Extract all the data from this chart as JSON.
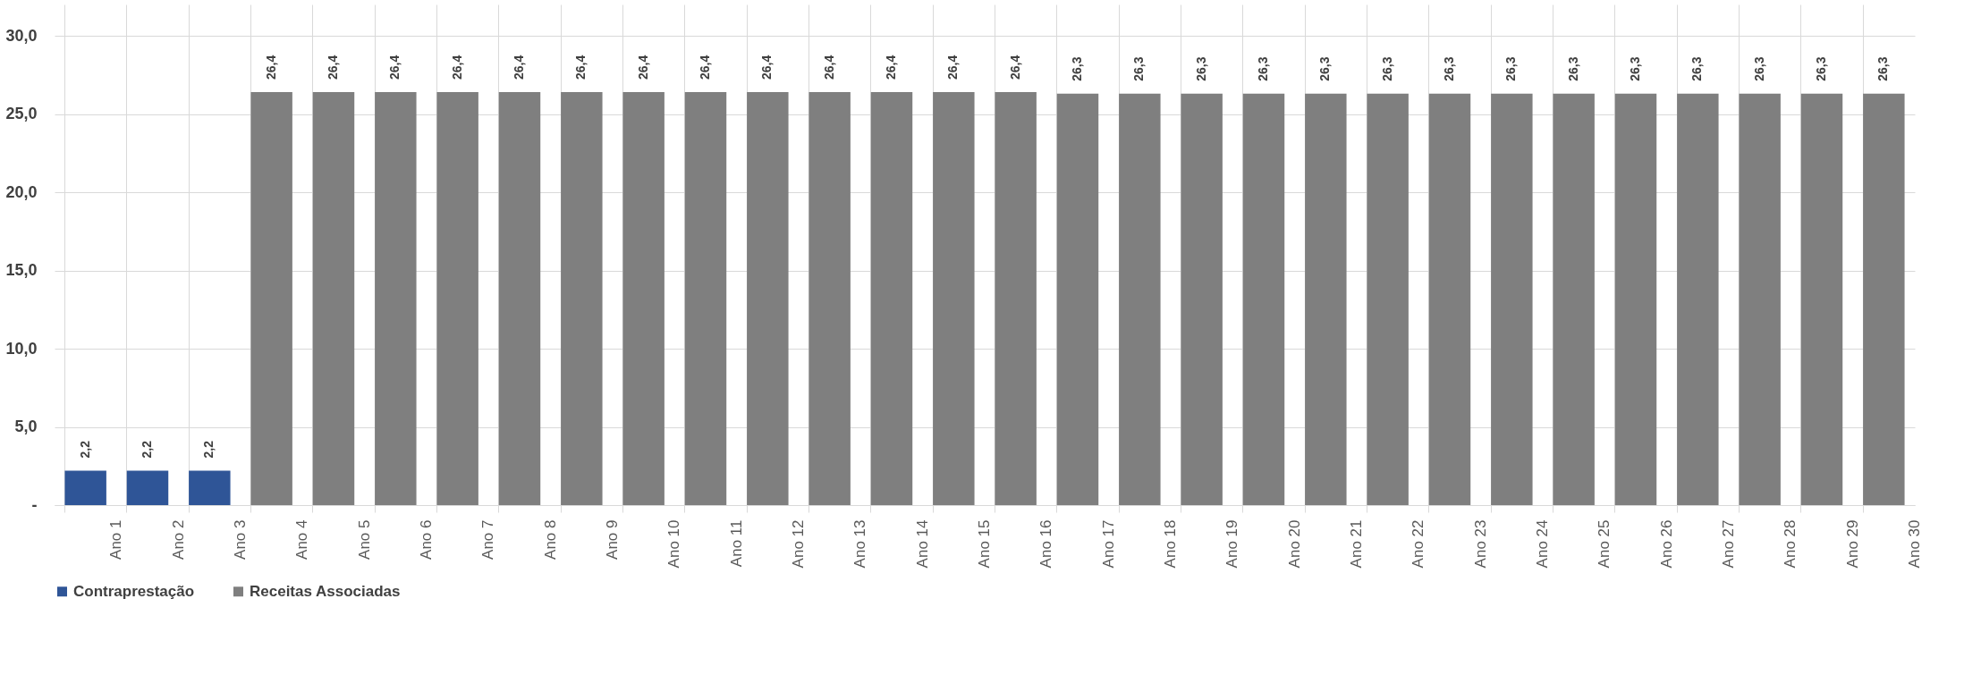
{
  "chart_data": {
    "type": "bar",
    "categories": [
      "Ano 1",
      "Ano 2",
      "Ano 3",
      "Ano 4",
      "Ano 5",
      "Ano 6",
      "Ano 7",
      "Ano 8",
      "Ano 9",
      "Ano 10",
      "Ano 11",
      "Ano 12",
      "Ano 13",
      "Ano 14",
      "Ano 15",
      "Ano 16",
      "Ano 17",
      "Ano 18",
      "Ano 19",
      "Ano 20",
      "Ano 21",
      "Ano 22",
      "Ano 23",
      "Ano 24",
      "Ano 25",
      "Ano 26",
      "Ano 27",
      "Ano 28",
      "Ano 29",
      "Ano 30"
    ],
    "series": [
      {
        "name": "Contraprestação",
        "color": "#2f5597",
        "values": [
          2.2,
          2.2,
          2.2,
          null,
          null,
          null,
          null,
          null,
          null,
          null,
          null,
          null,
          null,
          null,
          null,
          null,
          null,
          null,
          null,
          null,
          null,
          null,
          null,
          null,
          null,
          null,
          null,
          null,
          null,
          null
        ],
        "value_labels": [
          "2,2",
          "2,2",
          "2,2",
          null,
          null,
          null,
          null,
          null,
          null,
          null,
          null,
          null,
          null,
          null,
          null,
          null,
          null,
          null,
          null,
          null,
          null,
          null,
          null,
          null,
          null,
          null,
          null,
          null,
          null,
          null
        ]
      },
      {
        "name": "Receitas Associadas",
        "color": "#7f7f7f",
        "values": [
          null,
          null,
          null,
          26.4,
          26.4,
          26.4,
          26.4,
          26.4,
          26.4,
          26.4,
          26.4,
          26.4,
          26.4,
          26.4,
          26.4,
          26.4,
          26.3,
          26.3,
          26.3,
          26.3,
          26.3,
          26.3,
          26.3,
          26.3,
          26.3,
          26.3,
          26.3,
          26.3,
          26.3,
          26.3
        ],
        "value_labels": [
          null,
          null,
          null,
          "26,4",
          "26,4",
          "26,4",
          "26,4",
          "26,4",
          "26,4",
          "26,4",
          "26,4",
          "26,4",
          "26,4",
          "26,4",
          "26,4",
          "26,4",
          "26,3",
          "26,3",
          "26,3",
          "26,3",
          "26,3",
          "26,3",
          "26,3",
          "26,3",
          "26,3",
          "26,3",
          "26,3",
          "26,3",
          "26,3",
          "26,3"
        ]
      }
    ],
    "ylim": [
      0,
      32
    ],
    "yticks": [
      {
        "value": 0,
        "label": "-"
      },
      {
        "value": 5,
        "label": "5,0"
      },
      {
        "value": 10,
        "label": "10,0"
      },
      {
        "value": 15,
        "label": "15,0"
      },
      {
        "value": 20,
        "label": "20,0"
      },
      {
        "value": 25,
        "label": "25,0"
      },
      {
        "value": 30,
        "label": "30,0"
      }
    ],
    "grid": true,
    "legend": "bottom"
  }
}
